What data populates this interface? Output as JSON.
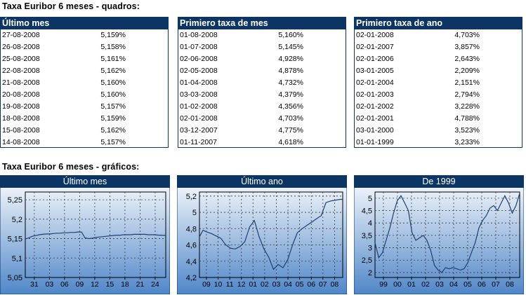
{
  "tables_title": "Taxa Euribor 6 meses - quadros:",
  "charts_title": "Taxa Euribor 6 meses - gráficos:",
  "tables": [
    {
      "header": "Último mes",
      "rows": [
        {
          "date": "27-08-2008",
          "value": "5,159%"
        },
        {
          "date": "26-08-2008",
          "value": "5,158%"
        },
        {
          "date": "25-08-2008",
          "value": "5,161%"
        },
        {
          "date": "22-08-2008",
          "value": "5,162%"
        },
        {
          "date": "21-08-2008",
          "value": "5,160%"
        },
        {
          "date": "20-08-2008",
          "value": "5,160%"
        },
        {
          "date": "19-08-2008",
          "value": "5,157%"
        },
        {
          "date": "18-08-2008",
          "value": "5,159%"
        },
        {
          "date": "15-08-2008",
          "value": "5,162%"
        },
        {
          "date": "14-08-2008",
          "value": "5,157%"
        }
      ]
    },
    {
      "header": "Primiero taxa de mes",
      "rows": [
        {
          "date": "01-08-2008",
          "value": "5,160%"
        },
        {
          "date": "01-07-2008",
          "value": "5,145%"
        },
        {
          "date": "02-06-2008",
          "value": "4,928%"
        },
        {
          "date": "02-05-2008",
          "value": "4,878%"
        },
        {
          "date": "01-04-2008",
          "value": "4,732%"
        },
        {
          "date": "03-03-2008",
          "value": "4,379%"
        },
        {
          "date": "01-02-2008",
          "value": "4,356%"
        },
        {
          "date": "02-01-2008",
          "value": "4,703%"
        },
        {
          "date": "03-12-2007",
          "value": "4,775%"
        },
        {
          "date": "01-11-2007",
          "value": "4,618%"
        }
      ]
    },
    {
      "header": "Primiero taxa de ano",
      "rows": [
        {
          "date": "02-01-2008",
          "value": "4,703%"
        },
        {
          "date": "02-01-2007",
          "value": "3,857%"
        },
        {
          "date": "02-01-2006",
          "value": "2,643%"
        },
        {
          "date": "03-01-2005",
          "value": "2,209%"
        },
        {
          "date": "02-01-2004",
          "value": "2,151%"
        },
        {
          "date": "02-01-2003",
          "value": "2,794%"
        },
        {
          "date": "02-01-2002",
          "value": "3,228%"
        },
        {
          "date": "02-01-2001",
          "value": "4,788%"
        },
        {
          "date": "03-01-2000",
          "value": "3,523%"
        },
        {
          "date": "01-01-1999",
          "value": "3,233%"
        }
      ]
    }
  ],
  "colors": {
    "header": "#0d3564",
    "line": "#1f3f73",
    "grid": "#3a3a3a",
    "bg_top": "#ffffff",
    "bg_bottom": "#4f86c8"
  },
  "chart_data": [
    {
      "type": "line",
      "title": "Último mes",
      "ylim": [
        5.05,
        5.27
      ],
      "yticks": [
        5.05,
        5.1,
        5.15,
        5.2,
        5.25
      ],
      "ytick_labels": [
        "5,05",
        "5,1",
        "5,15",
        "5,2",
        "5,25"
      ],
      "xtick_labels": [
        "31",
        "03",
        "06",
        "09",
        "12",
        "15",
        "18",
        "21",
        "24"
      ],
      "grid": true,
      "x": [
        0,
        1,
        2,
        3,
        4,
        5,
        6,
        7,
        8,
        9,
        10,
        11,
        12,
        13,
        14,
        15,
        16,
        17,
        18,
        19,
        20,
        21,
        22,
        23,
        24,
        25,
        26,
        27,
        28,
        29,
        30,
        31,
        32,
        33,
        34,
        35,
        36,
        37,
        38,
        39,
        40
      ],
      "y": [
        5.149,
        5.152,
        5.156,
        5.158,
        5.16,
        5.161,
        5.162,
        5.162,
        5.163,
        5.164,
        5.164,
        5.165,
        5.165,
        5.166,
        5.166,
        5.167,
        5.167,
        5.152,
        5.15,
        5.151,
        5.153,
        5.154,
        5.155,
        5.156,
        5.157,
        5.158,
        5.159,
        5.159,
        5.16,
        5.16,
        5.16,
        5.161,
        5.161,
        5.161,
        5.161,
        5.16,
        5.16,
        5.16,
        5.159,
        5.159,
        5.158
      ]
    },
    {
      "type": "line",
      "title": "Último ano",
      "ylim": [
        4.2,
        5.25
      ],
      "yticks": [
        4.2,
        4.4,
        4.6,
        4.8,
        5.0,
        5.2
      ],
      "ytick_labels": [
        "4,2",
        "4,4",
        "4,6",
        "4,8",
        "5",
        "5,2"
      ],
      "xtick_labels": [
        "09",
        "10",
        "11",
        "12",
        "01",
        "02",
        "03",
        "04",
        "05",
        "06",
        "07",
        "08"
      ],
      "grid": true,
      "x": [
        0,
        0.3,
        0.6,
        1,
        1.4,
        1.8,
        2.2,
        2.6,
        3,
        3.4,
        3.8,
        4.2,
        4.6,
        5,
        5.4,
        5.8,
        6.2,
        6.6,
        7,
        7.4,
        7.8,
        8.2,
        8.6,
        9,
        9.4,
        9.8,
        10.2,
        10.6,
        11,
        11.4,
        11.8,
        12
      ],
      "y": [
        4.7,
        4.78,
        4.76,
        4.74,
        4.71,
        4.68,
        4.6,
        4.56,
        4.55,
        4.58,
        4.64,
        4.82,
        4.9,
        4.7,
        4.55,
        4.45,
        4.3,
        4.36,
        4.32,
        4.42,
        4.6,
        4.75,
        4.8,
        4.84,
        4.88,
        4.92,
        4.96,
        5.12,
        5.14,
        5.15,
        5.16,
        5.16
      ]
    },
    {
      "type": "line",
      "title": "De 1999",
      "ylim": [
        1.8,
        5.25
      ],
      "yticks": [
        2,
        2.5,
        3,
        3.5,
        4,
        4.5,
        5
      ],
      "ytick_labels": [
        "2",
        "2,5",
        "3",
        "3,5",
        "4",
        "4,5",
        "5"
      ],
      "xtick_labels": [
        "99",
        "00",
        "01",
        "02",
        "03",
        "04",
        "05",
        "06",
        "07",
        "08"
      ],
      "grid": true,
      "x": [
        0,
        0.25,
        0.5,
        0.75,
        1,
        1.25,
        1.5,
        1.75,
        2,
        2.25,
        2.5,
        2.75,
        3,
        3.25,
        3.5,
        3.75,
        4,
        4.25,
        4.5,
        4.75,
        5,
        5.25,
        5.5,
        5.75,
        6,
        6.25,
        6.5,
        6.75,
        7,
        7.25,
        7.5,
        7.75,
        8,
        8.25,
        8.5,
        8.75,
        9,
        9.25,
        9.5,
        9.75
      ],
      "y": [
        3.2,
        2.6,
        2.8,
        3.3,
        3.8,
        4.4,
        4.9,
        5.1,
        4.8,
        4.5,
        3.6,
        3.3,
        3.4,
        3.5,
        3.3,
        2.9,
        2.3,
        2.1,
        2.0,
        2.2,
        2.15,
        2.2,
        2.15,
        2.1,
        2.15,
        2.4,
        2.8,
        3.2,
        3.8,
        4.1,
        4.3,
        4.6,
        4.7,
        4.5,
        4.8,
        5.1,
        4.8,
        4.4,
        4.7,
        5.2
      ]
    }
  ]
}
